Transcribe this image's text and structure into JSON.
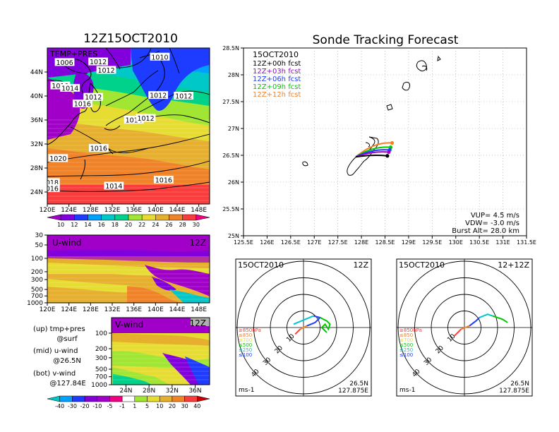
{
  "map_panel": {
    "title": "12Z15OCT2010",
    "label": "TEMP+PRES",
    "lat_ticks": [
      "44N",
      "40N",
      "36N",
      "32N",
      "28N",
      "24N"
    ],
    "lon_ticks": [
      "120E",
      "124E",
      "128E",
      "132E",
      "136E",
      "140E",
      "144E",
      "148E"
    ],
    "isobars": [
      {
        "text": "1010",
        "lon": 140.8,
        "lat": 46.5
      },
      {
        "text": "1006",
        "lon": 123.2,
        "lat": 45.6
      },
      {
        "text": "1012",
        "lon": 129.4,
        "lat": 45.7
      },
      {
        "text": "1012",
        "lon": 130.9,
        "lat": 44.3
      },
      {
        "text": "1010",
        "lon": 122.4,
        "lat": 41.7
      },
      {
        "text": "1014",
        "lon": 124.2,
        "lat": 41.3
      },
      {
        "text": "1012",
        "lon": 128.5,
        "lat": 39.8
      },
      {
        "text": "1012",
        "lon": 140.5,
        "lat": 40.1
      },
      {
        "text": "1012",
        "lon": 145.2,
        "lat": 40.0
      },
      {
        "text": "1016",
        "lon": 126.5,
        "lat": 38.7
      },
      {
        "text": "1014",
        "lon": 136.0,
        "lat": 36.0
      },
      {
        "text": "1012",
        "lon": 138.2,
        "lat": 36.3
      },
      {
        "text": "1016",
        "lon": 129.5,
        "lat": 31.3
      },
      {
        "text": "1020",
        "lon": 122.0,
        "lat": 29.6
      },
      {
        "text": "018",
        "lon": 120.9,
        "lat": 25.6
      },
      {
        "text": "016",
        "lon": 120.9,
        "lat": 24.6
      },
      {
        "text": "1014",
        "lon": 132.3,
        "lat": 25.0
      },
      {
        "text": "1016",
        "lon": 141.5,
        "lat": 26.0
      }
    ]
  },
  "temp_colorbar": {
    "labels": [
      "10",
      "12",
      "14",
      "16",
      "18",
      "20",
      "22",
      "24",
      "26",
      "28",
      "30"
    ],
    "colors": [
      "#a000c8",
      "#8200dc",
      "#1e3cff",
      "#00a0ff",
      "#00c8c8",
      "#00d28c",
      "#a0e632",
      "#e6dc32",
      "#e6af2d",
      "#f08228",
      "#fa3c3c",
      "#f00082"
    ]
  },
  "uwind_panel": {
    "label": "U-wind",
    "time": "12Z",
    "p_ticks": [
      "30",
      "50",
      "100",
      "200",
      "300",
      "500",
      "700",
      "1000"
    ],
    "lon_ticks": [
      "120E",
      "124E",
      "128E",
      "132E",
      "136E",
      "140E",
      "144E",
      "148E"
    ]
  },
  "vwind_panel": {
    "label": "V-wind",
    "time": "12Z",
    "p_ticks": [
      "100",
      "200",
      "300",
      "500",
      "700",
      "1000"
    ],
    "lat_ticks": [
      "24N",
      "28N",
      "32N",
      "36N"
    ]
  },
  "legend_notes": {
    "up_line1": "(up) tmp+pres",
    "up_line2": "@surf",
    "mid_line1": "(mid) u-wind",
    "mid_line2": "@26.5N",
    "bot_line1": "(bot) v-wind",
    "bot_line2": "@127.84E"
  },
  "wind_colorbar": {
    "labels": [
      "-40",
      "-30",
      "-20",
      "-10",
      "-5",
      "-1",
      "1",
      "5",
      "10",
      "20",
      "30",
      "40"
    ],
    "colors": [
      "#00c8c8",
      "#00a0ff",
      "#1e3cff",
      "#8200dc",
      "#a000c8",
      "#f00082",
      "#ffffff",
      "#a0e632",
      "#e6dc32",
      "#e6af2d",
      "#f08228",
      "#fa3c3c",
      "#c80000"
    ]
  },
  "tracking": {
    "title": "Sonde Tracking Forecast",
    "date": "15OCT2010",
    "forecasts": [
      {
        "label": "12Z+00h  fcst",
        "color": "#000000",
        "end": [
          128.55,
          26.49
        ]
      },
      {
        "label": "12Z+03h  fcst",
        "color": "#a000c8",
        "end": [
          128.58,
          26.56
        ]
      },
      {
        "label": "12Z+06h  fcst",
        "color": "#1e3cff",
        "end": [
          128.6,
          26.6
        ]
      },
      {
        "label": "12Z+09h  fcst",
        "color": "#00c800",
        "end": [
          128.62,
          26.65
        ]
      },
      {
        "label": "12Z+12h  fcst",
        "color": "#f08228",
        "end": [
          128.65,
          26.73
        ]
      }
    ],
    "launch": [
      127.88,
      26.47
    ],
    "lat_ticks": [
      "28.5N",
      "28N",
      "27.5N",
      "27N",
      "26.5N",
      "26N",
      "25.5N",
      "25N"
    ],
    "lon_ticks": [
      "125.5E",
      "126E",
      "126.5E",
      "127E",
      "127.5E",
      "128E",
      "128.5E",
      "129E",
      "129.5E",
      "130E",
      "130.5E",
      "131E",
      "131.5E"
    ],
    "vup": "VUP= 4.5 m/s",
    "vdw": "VDW= -3.0 m/s",
    "burst": "Burst Alt= 28.0 km"
  },
  "hodographs": [
    {
      "date": "15OCT2010",
      "time": "12Z",
      "lat": "26.5N",
      "lon": "127.875E",
      "unit": "ms-1",
      "levels": [
        {
          "text": "≥850hPa",
          "color": "#fa3c3c"
        },
        {
          "text": "≤850",
          "color": "#f08228"
        },
        {
          "text": "≤700",
          "color": "#e6dc32"
        },
        {
          "text": "≤500",
          "color": "#00c800"
        },
        {
          "text": "≤250",
          "color": "#00c8c8"
        },
        {
          "text": "≤100",
          "color": "#1e3cff"
        }
      ],
      "ring_labels": [
        "10",
        "20",
        "30",
        "40"
      ]
    },
    {
      "date": "15OCT2010",
      "time": "12+12Z",
      "lat": "26.5N",
      "lon": "127.875E",
      "unit": "ms-1",
      "levels": [
        {
          "text": "≥850hPa",
          "color": "#fa3c3c"
        },
        {
          "text": "≤850",
          "color": "#f08228"
        },
        {
          "text": "≤700",
          "color": "#e6dc32"
        },
        {
          "text": "≤500",
          "color": "#00c800"
        },
        {
          "text": "≤250",
          "color": "#00c8c8"
        },
        {
          "text": "≤100",
          "color": "#1e3cff"
        }
      ],
      "ring_labels": [
        "10",
        "20",
        "30",
        "40"
      ]
    }
  ]
}
